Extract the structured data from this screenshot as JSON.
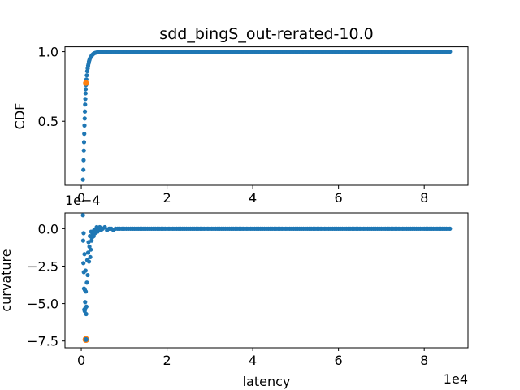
{
  "title": "sdd_bingS_out-rerated-10.0",
  "colors": {
    "series": "#1f77b4",
    "highlight": "#ff7f0e"
  },
  "chart_data": [
    {
      "type": "scatter",
      "panel": "top",
      "title": "sdd_bingS_out-rerated-10.0",
      "xlabel": "",
      "ylabel": "CDF",
      "xlim": [
        -3800,
        90200
      ],
      "ylim": [
        0.04,
        1.035
      ],
      "xticks": [
        0,
        20000,
        40000,
        60000,
        80000
      ],
      "xtick_labels": [
        "0",
        "2",
        "4",
        "6",
        "8"
      ],
      "yticks": [
        0.5,
        1.0
      ],
      "ytick_labels": [
        "0.5",
        "1.0"
      ],
      "grid": false,
      "series": [
        {
          "color": "#1f77b4",
          "x": [
            400,
            500,
            550,
            600,
            650,
            700,
            750,
            800,
            850,
            900,
            950,
            1000,
            1050,
            1100,
            1200,
            1300,
            1400,
            1500,
            1600,
            1700,
            1800,
            1900,
            2000,
            2200,
            2400,
            2600,
            2800,
            3000,
            3300,
            3600,
            4000,
            4500,
            5000,
            6000,
            7000,
            8000,
            10000,
            15000,
            20000,
            30000,
            40000,
            50000,
            60000,
            70000,
            80000,
            86000
          ],
          "y": [
            0.08,
            0.15,
            0.22,
            0.29,
            0.35,
            0.41,
            0.47,
            0.52,
            0.57,
            0.62,
            0.66,
            0.7,
            0.73,
            0.76,
            0.8,
            0.83,
            0.86,
            0.88,
            0.9,
            0.915,
            0.93,
            0.94,
            0.95,
            0.96,
            0.97,
            0.978,
            0.984,
            0.988,
            0.992,
            0.994,
            0.996,
            0.997,
            0.998,
            0.999,
            0.9993,
            0.9995,
            0.9997,
            0.9998,
            0.9999,
            0.9999,
            1.0,
            1.0,
            1.0,
            1.0,
            1.0,
            1.0
          ]
        },
        {
          "color": "#ff7f0e",
          "x": [
            1100
          ],
          "y": [
            0.775
          ]
        }
      ]
    },
    {
      "type": "scatter",
      "panel": "bottom",
      "xlabel": "latency",
      "ylabel": "curvature",
      "x_offset_label": "1e4",
      "y_offset_label": "1e−4",
      "xlim": [
        -3800,
        90200
      ],
      "ylim": [
        -0.000795,
        0.000105
      ],
      "xticks": [
        0,
        20000,
        40000,
        60000,
        80000
      ],
      "xtick_labels": [
        "0",
        "2",
        "4",
        "6",
        "8"
      ],
      "yticks": [
        0.0,
        -0.00025,
        -0.0005,
        -0.00075
      ],
      "ytick_labels": [
        "0.0",
        "−2.5",
        "−5.0",
        "−7.5"
      ],
      "grid": false,
      "series": [
        {
          "color": "#1f77b4",
          "x": [
            400,
            450,
            500,
            550,
            600,
            650,
            700,
            750,
            800,
            850,
            900,
            950,
            1000,
            1050,
            1100,
            1150,
            1200,
            1300,
            1400,
            1500,
            1600,
            1700,
            1800,
            1900,
            2000,
            2100,
            2200,
            2300,
            2400,
            2500,
            2600,
            2700,
            2800,
            2900,
            3000,
            3200,
            3400,
            3600,
            3800,
            4000,
            4300,
            4600,
            5000,
            5500,
            6000,
            6500,
            7000,
            7500,
            8000,
            9000,
            10000,
            12000,
            15000,
            20000,
            25000,
            30000,
            35000,
            40000,
            45000,
            50000,
            55000,
            60000,
            65000,
            70000,
            75000,
            80000,
            86000
          ],
          "y": [
            9e-05,
            -8e-05,
            -0.00023,
            -3e-05,
            -0.00029,
            -0.0004,
            -0.00054,
            -0.00017,
            -0.00055,
            -0.00041,
            -0.00049,
            -0.00053,
            -0.00028,
            -0.00042,
            -0.00074,
            -0.00057,
            -0.00052,
            -0.00036,
            -0.00021,
            -0.00031,
            -0.00016,
            -9e-05,
            -0.00022,
            -0.00012,
            -5e-05,
            -0.00019,
            -0.00014,
            -2e-05,
            -8e-05,
            -6e-05,
            -3e-05,
            -4e-05,
            -2e-05,
            -5e-05,
            -1e-05,
            -3e-05,
            -1e-05,
            1e-05,
            -2e-05,
            0.0,
            1e-05,
            -1e-05,
            0.0,
            1e-05,
            -1e-05,
            0.0,
            0.0,
            -1e-05,
            0.0,
            0.0,
            0.0,
            0.0,
            0.0,
            0.0,
            0.0,
            0.0,
            0.0,
            0.0,
            0.0,
            0.0,
            0.0,
            0.0,
            0.0,
            0.0,
            0.0,
            0.0,
            0.0
          ]
        },
        {
          "color": "#ff7f0e",
          "x": [
            1100
          ],
          "y": [
            -0.00074
          ],
          "hollow": true
        }
      ]
    }
  ]
}
